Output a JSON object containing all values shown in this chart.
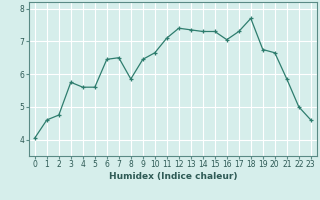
{
  "x": [
    0,
    1,
    2,
    3,
    4,
    5,
    6,
    7,
    8,
    9,
    10,
    11,
    12,
    13,
    14,
    15,
    16,
    17,
    18,
    19,
    20,
    21,
    22,
    23
  ],
  "y": [
    4.05,
    4.6,
    4.75,
    5.75,
    5.6,
    5.6,
    6.45,
    6.5,
    5.85,
    6.45,
    6.65,
    7.1,
    7.4,
    7.35,
    7.3,
    7.3,
    7.05,
    7.3,
    7.7,
    6.75,
    6.65,
    5.85,
    5.0,
    4.6
  ],
  "title": "",
  "xlabel": "Humidex (Indice chaleur)",
  "ylabel": "",
  "xlim": [
    -0.5,
    23.5
  ],
  "ylim": [
    3.5,
    8.2
  ],
  "yticks": [
    4,
    5,
    6,
    7,
    8
  ],
  "xticks": [
    0,
    1,
    2,
    3,
    4,
    5,
    6,
    7,
    8,
    9,
    10,
    11,
    12,
    13,
    14,
    15,
    16,
    17,
    18,
    19,
    20,
    21,
    22,
    23
  ],
  "line_color": "#2e7d6e",
  "marker": "+",
  "bg_color": "#d6eeeb",
  "grid_color": "#ffffff",
  "tick_label_fontsize": 5.5,
  "xlabel_fontsize": 6.5
}
